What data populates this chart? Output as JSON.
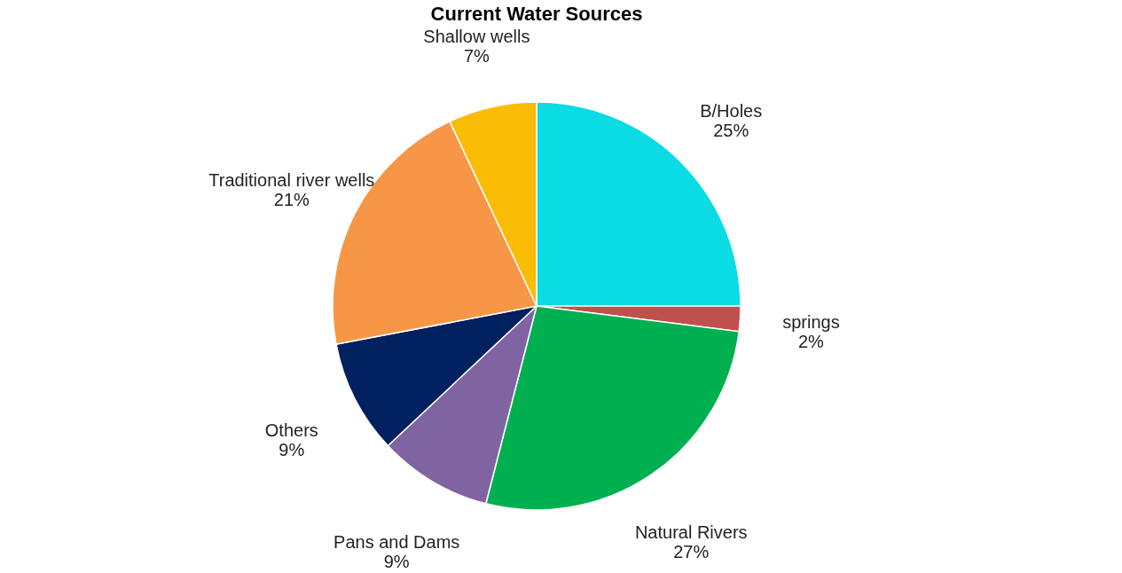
{
  "chart_data": {
    "type": "pie",
    "title": "Current Water Sources",
    "categories": [
      "B/Holes",
      "springs",
      "Natural Rivers",
      "Pans and Dams",
      "Others",
      "Traditional river wells",
      "Shallow wells"
    ],
    "values": [
      25,
      2,
      27,
      9,
      9,
      21,
      7
    ],
    "colors": [
      "#0bdbe3",
      "#c0504d",
      "#00b050",
      "#8064a2",
      "#002060",
      "#f79646",
      "#fbbc05"
    ],
    "value_labels": [
      "25%",
      "2%",
      "27%",
      "9%",
      "9%",
      "21%",
      "7%"
    ],
    "legend": false
  }
}
